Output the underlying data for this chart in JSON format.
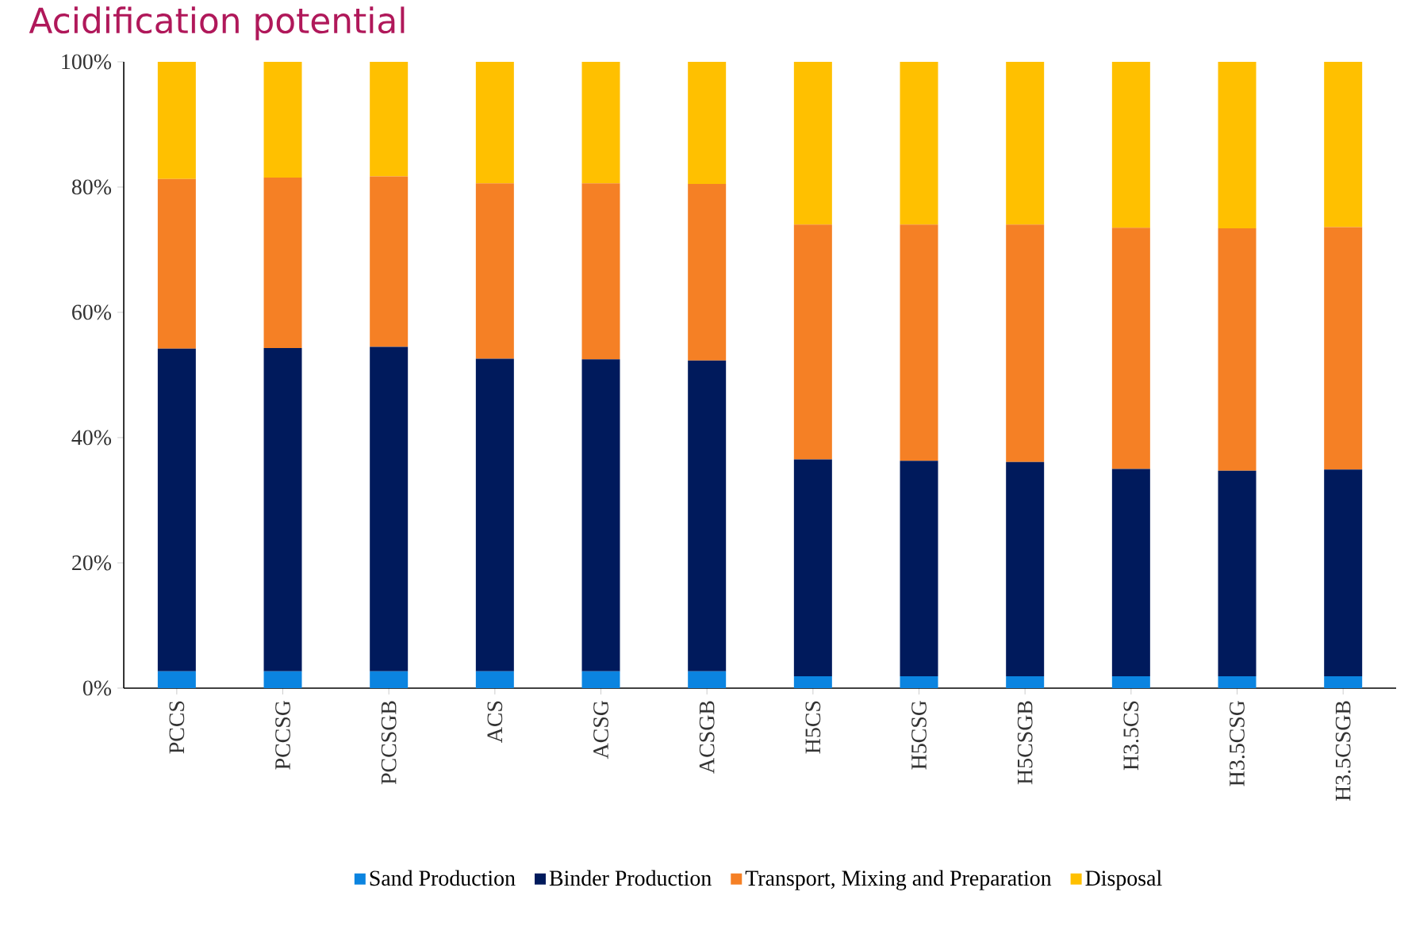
{
  "chart_data": {
    "type": "bar",
    "stacked": true,
    "title": "Acidification potential",
    "categories": [
      "PCCS",
      "PCCSG",
      "PCCSGB",
      "ACS",
      "ACSG",
      "ACSGB",
      "H5CS",
      "H5CSG",
      "H5CSGB",
      "H3.5CS",
      "H3.5CSG",
      "H3.5CSGB"
    ],
    "series": [
      {
        "name": "Sand Production",
        "color": "#0b84e0",
        "values": [
          2.7,
          2.7,
          2.7,
          2.7,
          2.7,
          2.7,
          1.9,
          1.9,
          1.9,
          1.9,
          1.9,
          1.9
        ]
      },
      {
        "name": "Binder Production",
        "color": "#001a5c",
        "values": [
          51.5,
          51.6,
          51.8,
          49.9,
          49.8,
          49.6,
          34.6,
          34.4,
          34.2,
          33.1,
          32.8,
          33.0
        ]
      },
      {
        "name": "Transport, Mixing and Preparation",
        "color": "#f58025",
        "values": [
          27.1,
          27.2,
          27.2,
          28.0,
          28.1,
          28.2,
          37.5,
          37.7,
          37.9,
          38.5,
          38.7,
          38.7
        ]
      },
      {
        "name": "Disposal",
        "color": "#ffc000",
        "values": [
          18.7,
          18.5,
          18.3,
          19.4,
          19.4,
          19.5,
          26.0,
          26.0,
          26.0,
          26.5,
          26.6,
          26.4
        ]
      }
    ],
    "ylim": [
      0,
      100
    ],
    "yticks": [
      {
        "value": 0,
        "label": "0%"
      },
      {
        "value": 20,
        "label": "20%"
      },
      {
        "value": 40,
        "label": "40%"
      },
      {
        "value": 60,
        "label": "60%"
      },
      {
        "value": 80,
        "label": "80%"
      },
      {
        "value": 100,
        "label": "100%"
      }
    ],
    "grid": false,
    "legend": "bottom"
  }
}
